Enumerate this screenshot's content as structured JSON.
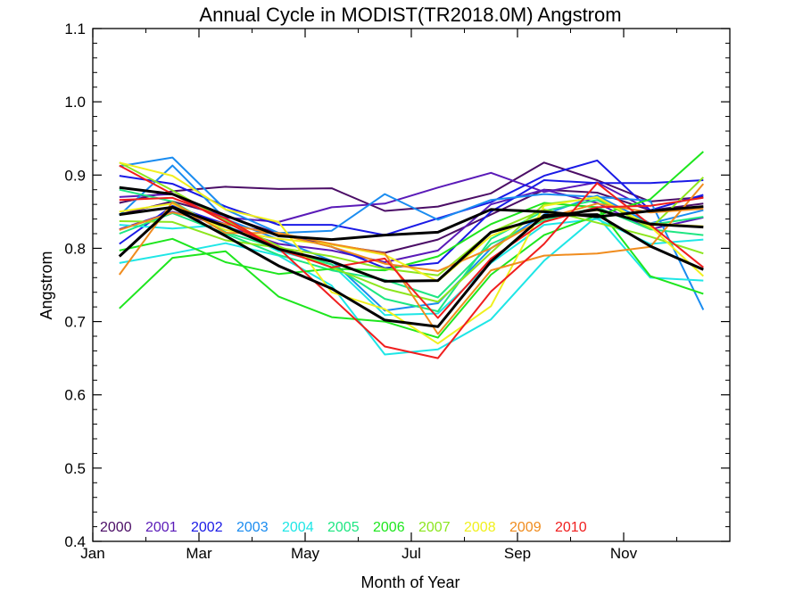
{
  "chart_data": {
    "type": "line",
    "title": "Annual Cycle in MODIST(TR2018.0M) Angstrom",
    "xlabel": "Month of Year",
    "ylabel": "Angstrom",
    "xlim": [
      0,
      12
    ],
    "ylim": [
      0.4,
      1.1
    ],
    "x_ticks": [
      {
        "value": 0,
        "label": "Jan"
      },
      {
        "value": 2,
        "label": "Mar"
      },
      {
        "value": 4,
        "label": "May"
      },
      {
        "value": 6,
        "label": "Jul"
      },
      {
        "value": 8,
        "label": "Sep"
      },
      {
        "value": 10,
        "label": "Nov"
      }
    ],
    "y_ticks": [
      0.4,
      0.5,
      0.6,
      0.7,
      0.8,
      0.9,
      1.0,
      1.1
    ],
    "y_tick_labels": [
      "0.4",
      "0.5",
      "0.6",
      "0.7",
      "0.8",
      "0.9",
      "1.0",
      "1.1"
    ],
    "x": [
      0.5,
      1.5,
      2.5,
      3.5,
      4.5,
      5.5,
      6.5,
      7.5,
      8.5,
      9.5,
      10.5,
      11.5
    ],
    "grid": false,
    "legend_position": "bottom-left",
    "legend": [
      {
        "label": "2000",
        "color": "#4b0d66"
      },
      {
        "label": "2001",
        "color": "#5a1ab8"
      },
      {
        "label": "2002",
        "color": "#1a1ae6"
      },
      {
        "label": "2003",
        "color": "#1a8cf0"
      },
      {
        "label": "2004",
        "color": "#1ee6e6"
      },
      {
        "label": "2005",
        "color": "#1ee682"
      },
      {
        "label": "2006",
        "color": "#1ee61e"
      },
      {
        "label": "2007",
        "color": "#8ce61e"
      },
      {
        "label": "2008",
        "color": "#f0f01e"
      },
      {
        "label": "2009",
        "color": "#f08c1e"
      },
      {
        "label": "2010",
        "color": "#f01e1e"
      }
    ],
    "series": [
      {
        "color": "#4b0d66",
        "values": [
          0.862,
          0.878,
          0.884,
          0.881,
          0.882,
          0.851,
          0.857,
          0.875,
          0.917,
          0.893,
          0.864,
          0.87
        ]
      },
      {
        "color": "#4b0d66",
        "values": [
          0.846,
          0.864,
          0.844,
          0.82,
          0.805,
          0.794,
          0.812,
          0.846,
          0.88,
          0.876,
          0.852,
          0.861
        ]
      },
      {
        "color": "#5a1ab8",
        "values": [
          0.87,
          0.874,
          0.842,
          0.836,
          0.856,
          0.861,
          0.883,
          0.903,
          0.877,
          0.89,
          0.852,
          0.857
        ]
      },
      {
        "color": "#5a1ab8",
        "values": [
          0.826,
          0.85,
          0.83,
          0.806,
          0.797,
          0.781,
          0.797,
          0.86,
          0.88,
          0.862,
          0.826,
          0.842
        ]
      },
      {
        "color": "#1a1ae6",
        "values": [
          0.899,
          0.888,
          0.857,
          0.832,
          0.832,
          0.818,
          0.841,
          0.863,
          0.899,
          0.92,
          0.852,
          0.873
        ]
      },
      {
        "color": "#1a1ae6",
        "values": [
          0.806,
          0.858,
          0.833,
          0.82,
          0.802,
          0.773,
          0.78,
          0.85,
          0.893,
          0.889,
          0.889,
          0.893
        ]
      },
      {
        "color": "#1a8cf0",
        "values": [
          0.912,
          0.924,
          0.853,
          0.821,
          0.824,
          0.874,
          0.839,
          0.866,
          0.874,
          0.87,
          0.865,
          0.716
        ]
      },
      {
        "color": "#1a8cf0",
        "values": [
          0.845,
          0.913,
          0.84,
          0.812,
          0.783,
          0.715,
          0.725,
          0.8,
          0.846,
          0.872,
          0.834,
          0.852
        ]
      },
      {
        "color": "#1ee6e6",
        "values": [
          0.78,
          0.793,
          0.807,
          0.79,
          0.749,
          0.655,
          0.662,
          0.703,
          0.783,
          0.844,
          0.76,
          0.756
        ]
      },
      {
        "color": "#1ee6e6",
        "values": [
          0.832,
          0.827,
          0.832,
          0.796,
          0.778,
          0.709,
          0.711,
          0.78,
          0.832,
          0.84,
          0.806,
          0.812
        ]
      },
      {
        "color": "#1ee682",
        "values": [
          0.88,
          0.864,
          0.822,
          0.8,
          0.778,
          0.731,
          0.714,
          0.813,
          0.851,
          0.866,
          0.832,
          0.843
        ]
      },
      {
        "color": "#1ee682",
        "values": [
          0.82,
          0.848,
          0.82,
          0.791,
          0.77,
          0.757,
          0.733,
          0.806,
          0.838,
          0.856,
          0.826,
          0.818
        ]
      },
      {
        "color": "#1ee61e",
        "values": [
          0.718,
          0.787,
          0.796,
          0.734,
          0.706,
          0.7,
          0.678,
          0.764,
          0.818,
          0.845,
          0.867,
          0.932
        ]
      },
      {
        "color": "#1ee61e",
        "values": [
          0.797,
          0.813,
          0.781,
          0.765,
          0.772,
          0.77,
          0.789,
          0.833,
          0.862,
          0.856,
          0.762,
          0.738
        ]
      },
      {
        "color": "#8ce61e",
        "values": [
          0.917,
          0.879,
          0.838,
          0.803,
          0.774,
          0.745,
          0.727,
          0.794,
          0.86,
          0.869,
          0.827,
          0.897
        ]
      },
      {
        "color": "#8ce61e",
        "values": [
          0.837,
          0.836,
          0.811,
          0.801,
          0.789,
          0.772,
          0.763,
          0.822,
          0.853,
          0.835,
          0.816,
          0.793
        ]
      },
      {
        "color": "#f0f01e",
        "values": [
          0.917,
          0.899,
          0.853,
          0.836,
          0.74,
          0.717,
          0.67,
          0.721,
          0.858,
          0.87,
          0.83,
          0.762
        ]
      },
      {
        "color": "#f0f01e",
        "values": [
          0.85,
          0.861,
          0.825,
          0.813,
          0.805,
          0.791,
          0.755,
          0.817,
          0.845,
          0.852,
          0.834,
          0.83
        ]
      },
      {
        "color": "#f08c1e",
        "values": [
          0.764,
          0.863,
          0.821,
          0.821,
          0.806,
          0.793,
          0.683,
          0.77,
          0.79,
          0.793,
          0.802,
          0.888
        ]
      },
      {
        "color": "#f08c1e",
        "values": [
          0.825,
          0.849,
          0.833,
          0.819,
          0.802,
          0.779,
          0.769,
          0.8,
          0.841,
          0.861,
          0.849,
          0.854
        ]
      },
      {
        "color": "#f01e1e",
        "values": [
          0.913,
          0.874,
          0.836,
          0.8,
          0.733,
          0.666,
          0.65,
          0.741,
          0.806,
          0.889,
          0.832,
          0.774
        ]
      },
      {
        "color": "#f01e1e",
        "values": [
          0.866,
          0.869,
          0.841,
          0.799,
          0.774,
          0.786,
          0.705,
          0.786,
          0.836,
          0.856,
          0.858,
          0.869
        ]
      },
      {
        "color": "#000000",
        "width": 3,
        "values": [
          0.789,
          0.856,
          0.817,
          0.776,
          0.745,
          0.702,
          0.693,
          0.782,
          0.845,
          0.846,
          0.803,
          0.771
        ]
      },
      {
        "color": "#000000",
        "width": 3,
        "values": [
          0.846,
          0.856,
          0.83,
          0.799,
          0.782,
          0.755,
          0.756,
          0.822,
          0.842,
          0.853,
          0.833,
          0.829
        ]
      },
      {
        "color": "#000000",
        "width": 3,
        "values": [
          0.883,
          0.874,
          0.845,
          0.817,
          0.812,
          0.818,
          0.822,
          0.853,
          0.85,
          0.843,
          0.851,
          0.857
        ]
      }
    ]
  }
}
